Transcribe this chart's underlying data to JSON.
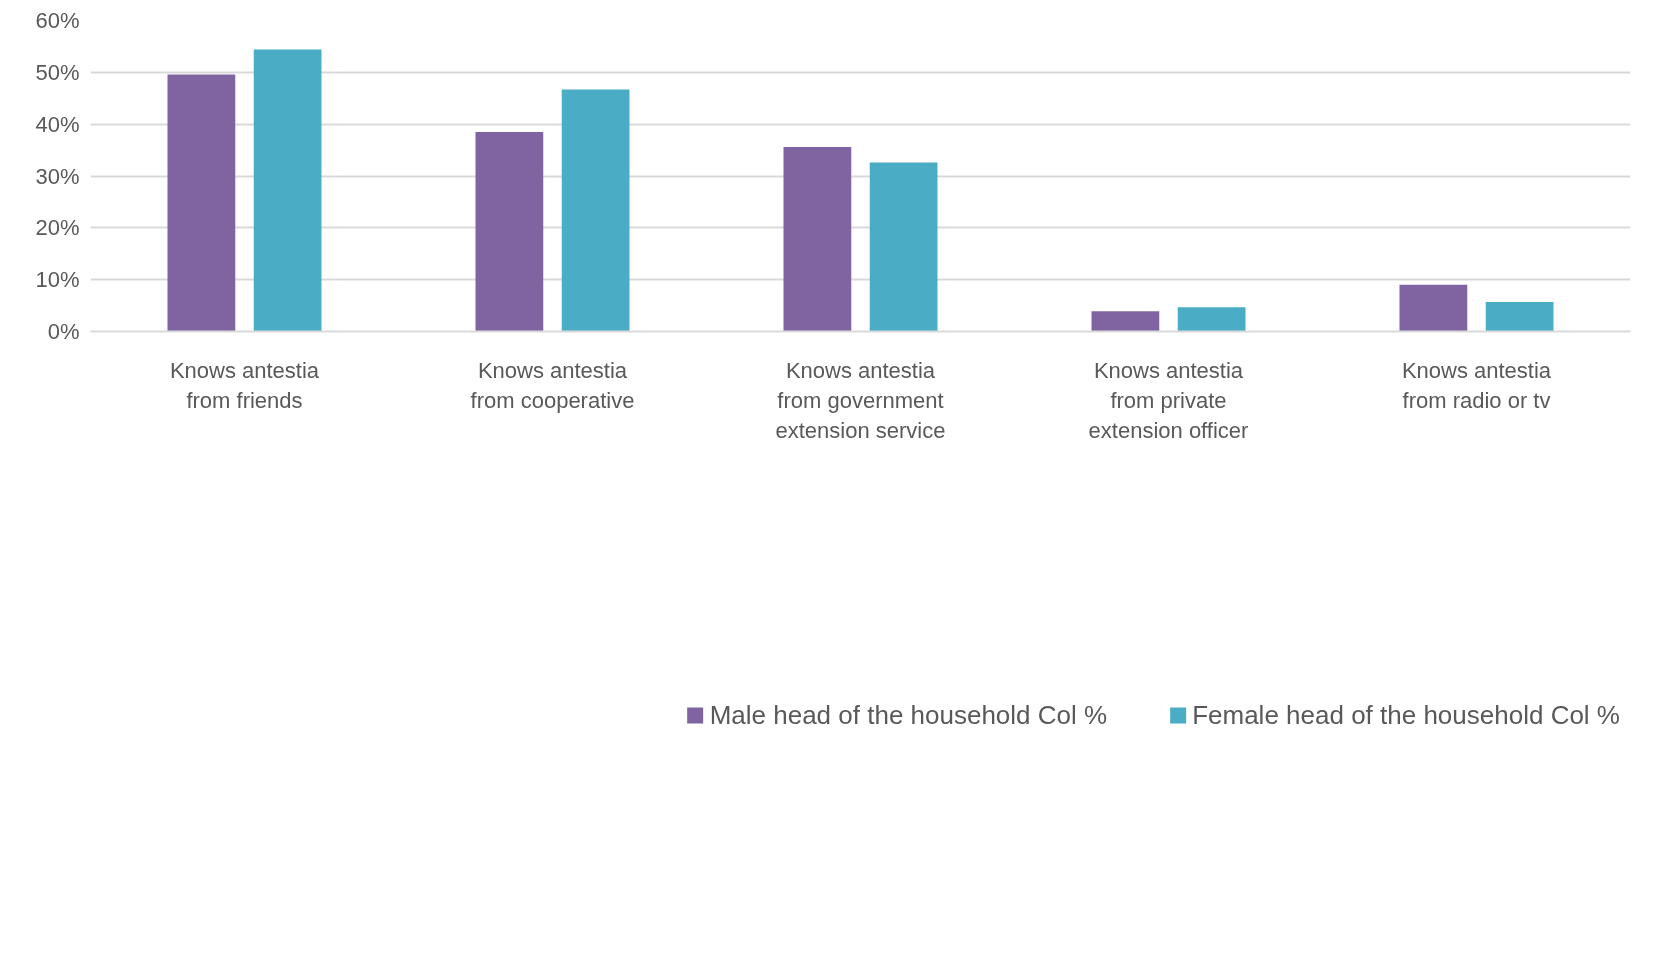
{
  "chart_data": {
    "type": "bar",
    "categories": [
      "Knows antestia from friends",
      "Knows antestia from cooperative",
      "Knows antestia from government extension service",
      "Knows antestia from private extension officer",
      "Knows antestia from radio or tv"
    ],
    "series": [
      {
        "name": "Male head of the household Col %",
        "color": "#8064a2",
        "values": [
          49.6,
          38.5,
          35.6,
          3.9,
          9.0
        ]
      },
      {
        "name": "Female head of the household Col %",
        "color": "#4bacc6",
        "values": [
          54.4,
          46.7,
          32.6,
          4.7,
          5.7
        ]
      }
    ],
    "ylim": [
      0,
      60
    ],
    "yticks": [
      {
        "value": 0,
        "label": "0%"
      },
      {
        "value": 10,
        "label": "10%"
      },
      {
        "value": 20,
        "label": "20%"
      },
      {
        "value": 30,
        "label": "30%"
      },
      {
        "value": 40,
        "label": "40%"
      },
      {
        "value": 50,
        "label": "50%"
      },
      {
        "value": 60,
        "label": "60%"
      }
    ],
    "grid": "y",
    "legend": "bottom"
  }
}
